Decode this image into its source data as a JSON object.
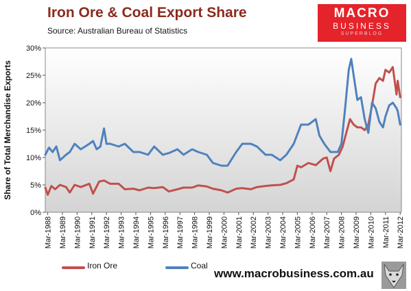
{
  "header": {
    "title": "Iron Ore & Coal Export Share",
    "subtitle": "Source:  Australian Bureau of Statistics"
  },
  "logo": {
    "line1": "MACRO",
    "line2": "BUSINESS",
    "line3": "SUPERBLOG"
  },
  "footer": {
    "website": "www.macrobusiness.com.au"
  },
  "colors": {
    "iron_ore": "#c0504d",
    "coal": "#4f81bd",
    "title": "#8b2a1d",
    "logo_bg": "#e4232b"
  },
  "chart_data": {
    "type": "line",
    "title": "Iron Ore & Coal Export Share",
    "ylabel": "Share of Total Merchandise Exports",
    "xlabel": "",
    "ylim": [
      0,
      30
    ],
    "yticks": [
      "0%",
      "5%",
      "10%",
      "15%",
      "20%",
      "25%",
      "30%"
    ],
    "xticks": [
      "Mar-1988",
      "Mar-1989",
      "Mar-1990",
      "Mar-1991",
      "Mar-1992",
      "Mar-1993",
      "Mar-1994",
      "Mar-1995",
      "Mar-1996",
      "Mar-1997",
      "Mar-1998",
      "Mar-1999",
      "Mar-2000",
      "Mar-2001",
      "Mar-2002",
      "Mar-2003",
      "Mar-2004",
      "Mar-2005",
      "Mar-2006",
      "Mar-2007",
      "Mar-2008",
      "Mar-2009",
      "Mar-2010",
      "Mar-2011",
      "Mar-2012"
    ],
    "legend_position": "bottom-left",
    "grid": false,
    "series": [
      {
        "name": "Iron Ore",
        "color": "#c0504d",
        "points": [
          [
            "1988-01",
            4.5
          ],
          [
            "1988-03",
            3.2
          ],
          [
            "1988-06",
            4.8
          ],
          [
            "1988-09",
            4.2
          ],
          [
            "1989-01",
            5.0
          ],
          [
            "1989-06",
            4.6
          ],
          [
            "1989-09",
            3.6
          ],
          [
            "1990-01",
            5.0
          ],
          [
            "1990-06",
            4.6
          ],
          [
            "1991-01",
            5.2
          ],
          [
            "1991-04",
            3.4
          ],
          [
            "1991-09",
            5.6
          ],
          [
            "1992-01",
            5.8
          ],
          [
            "1992-06",
            5.2
          ],
          [
            "1993-01",
            5.2
          ],
          [
            "1993-06",
            4.2
          ],
          [
            "1994-01",
            4.3
          ],
          [
            "1994-06",
            4.0
          ],
          [
            "1995-01",
            4.5
          ],
          [
            "1995-06",
            4.4
          ],
          [
            "1996-01",
            4.6
          ],
          [
            "1996-06",
            3.8
          ],
          [
            "1997-01",
            4.2
          ],
          [
            "1997-06",
            4.5
          ],
          [
            "1998-01",
            4.5
          ],
          [
            "1998-06",
            4.9
          ],
          [
            "1999-01",
            4.7
          ],
          [
            "1999-06",
            4.3
          ],
          [
            "2000-01",
            4.0
          ],
          [
            "2000-06",
            3.6
          ],
          [
            "2001-01",
            4.3
          ],
          [
            "2001-06",
            4.4
          ],
          [
            "2002-01",
            4.2
          ],
          [
            "2002-06",
            4.6
          ],
          [
            "2003-01",
            4.8
          ],
          [
            "2003-06",
            4.9
          ],
          [
            "2004-01",
            5.0
          ],
          [
            "2004-06",
            5.3
          ],
          [
            "2004-12",
            6.0
          ],
          [
            "2005-03",
            8.5
          ],
          [
            "2005-06",
            8.2
          ],
          [
            "2005-12",
            9.0
          ],
          [
            "2006-06",
            8.6
          ],
          [
            "2006-12",
            9.8
          ],
          [
            "2007-03",
            10.0
          ],
          [
            "2007-06",
            7.5
          ],
          [
            "2007-09",
            9.8
          ],
          [
            "2008-01",
            10.5
          ],
          [
            "2008-04",
            12.0
          ],
          [
            "2008-07",
            14.5
          ],
          [
            "2008-10",
            17.0
          ],
          [
            "2009-01",
            16.0
          ],
          [
            "2009-04",
            15.5
          ],
          [
            "2009-07",
            15.5
          ],
          [
            "2009-10",
            15.0
          ],
          [
            "2010-01",
            16.0
          ],
          [
            "2010-04",
            19.5
          ],
          [
            "2010-07",
            23.5
          ],
          [
            "2010-10",
            24.5
          ],
          [
            "2011-01",
            24.0
          ],
          [
            "2011-03",
            26.0
          ],
          [
            "2011-06",
            25.5
          ],
          [
            "2011-09",
            26.5
          ],
          [
            "2011-12",
            21.5
          ],
          [
            "2012-01",
            24.0
          ],
          [
            "2012-03",
            21.0
          ]
        ]
      },
      {
        "name": "Coal",
        "color": "#4f81bd",
        "points": [
          [
            "1988-01",
            10.5
          ],
          [
            "1988-04",
            11.8
          ],
          [
            "1988-07",
            11.0
          ],
          [
            "1988-10",
            12.0
          ],
          [
            "1989-01",
            9.5
          ],
          [
            "1989-06",
            10.5
          ],
          [
            "1989-09",
            11.0
          ],
          [
            "1990-01",
            12.5
          ],
          [
            "1990-06",
            11.5
          ],
          [
            "1991-01",
            12.5
          ],
          [
            "1991-04",
            13.0
          ],
          [
            "1991-07",
            11.5
          ],
          [
            "1991-10",
            12.0
          ],
          [
            "1992-01",
            15.3
          ],
          [
            "1992-03",
            12.5
          ],
          [
            "1992-06",
            12.5
          ],
          [
            "1993-01",
            12.0
          ],
          [
            "1993-06",
            12.5
          ],
          [
            "1994-01",
            11.0
          ],
          [
            "1994-06",
            11.0
          ],
          [
            "1995-01",
            10.5
          ],
          [
            "1995-06",
            12.0
          ],
          [
            "1996-01",
            10.5
          ],
          [
            "1996-06",
            10.8
          ],
          [
            "1997-01",
            11.5
          ],
          [
            "1997-06",
            10.5
          ],
          [
            "1998-01",
            11.5
          ],
          [
            "1998-06",
            11.0
          ],
          [
            "1999-01",
            10.5
          ],
          [
            "1999-06",
            9.0
          ],
          [
            "2000-01",
            8.5
          ],
          [
            "2000-06",
            8.5
          ],
          [
            "2001-01",
            11.0
          ],
          [
            "2001-06",
            12.5
          ],
          [
            "2002-01",
            12.5
          ],
          [
            "2002-06",
            12.0
          ],
          [
            "2003-01",
            10.5
          ],
          [
            "2003-06",
            10.5
          ],
          [
            "2004-01",
            9.5
          ],
          [
            "2004-06",
            10.5
          ],
          [
            "2004-12",
            12.5
          ],
          [
            "2005-06",
            16.0
          ],
          [
            "2005-12",
            16.0
          ],
          [
            "2006-06",
            17.0
          ],
          [
            "2006-09",
            14.0
          ],
          [
            "2007-01",
            12.5
          ],
          [
            "2007-06",
            11.0
          ],
          [
            "2007-12",
            11.0
          ],
          [
            "2008-03",
            12.5
          ],
          [
            "2008-06",
            19.0
          ],
          [
            "2008-09",
            26.0
          ],
          [
            "2008-11",
            28.0
          ],
          [
            "2009-01",
            25.0
          ],
          [
            "2009-04",
            20.5
          ],
          [
            "2009-07",
            21.0
          ],
          [
            "2009-10",
            17.0
          ],
          [
            "2010-01",
            14.5
          ],
          [
            "2010-04",
            20.0
          ],
          [
            "2010-07",
            19.0
          ],
          [
            "2010-10",
            16.5
          ],
          [
            "2011-01",
            15.5
          ],
          [
            "2011-03",
            17.5
          ],
          [
            "2011-06",
            19.5
          ],
          [
            "2011-09",
            20.0
          ],
          [
            "2011-12",
            19.0
          ],
          [
            "2012-01",
            18.5
          ],
          [
            "2012-03",
            16.0
          ]
        ]
      }
    ]
  }
}
